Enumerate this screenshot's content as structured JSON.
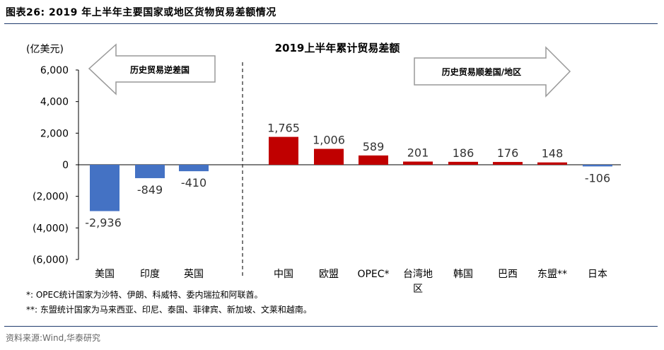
{
  "figure": {
    "title": "图表26:   2019 年上半年主要国家或地区货物贸易差额情况",
    "notes": [
      "*: OPEC统计国家为沙特、伊朗、科威特、委内瑞拉和阿联酋。",
      "**: 东盟统计国家为马来西亚、印尼、泰国、菲律宾、新加坡、文莱和越南。"
    ],
    "source": "资料来源:Wind,华泰研究"
  },
  "colors": {
    "deficit": "#4472c4",
    "surplus": "#c00000",
    "arrow_fill": "#ffffff",
    "arrow_stroke": "#999999"
  },
  "chart_data": {
    "type": "bar",
    "title": "2019上半年累计贸易差额",
    "ylabel": "(亿美元)",
    "ylim": [
      -6000,
      6000
    ],
    "yticks": [
      6000,
      4000,
      2000,
      0,
      -2000,
      -4000,
      -6000
    ],
    "ytick_labels": [
      "6,000",
      "4,000",
      "2,000",
      "0",
      "(2,000)",
      "(4,000)",
      "(6,000)"
    ],
    "categories": [
      "美国",
      "印度",
      "英国",
      "",
      "中国",
      "欧盟",
      "OPEC*",
      "台湾地区",
      "韩国",
      "巴西",
      "东盟**",
      "日本"
    ],
    "values": [
      -2936,
      -849,
      -410,
      null,
      1765,
      1006,
      589,
      201,
      186,
      176,
      148,
      -106
    ],
    "data_labels": [
      "-2,936",
      "-849",
      "-410",
      "",
      "1,765",
      "1,006",
      "589",
      "201",
      "186",
      "176",
      "148",
      "-106"
    ],
    "bar_colors": [
      "#4472c4",
      "#4472c4",
      "#4472c4",
      "",
      "#c00000",
      "#c00000",
      "#c00000",
      "#c00000",
      "#c00000",
      "#c00000",
      "#c00000",
      "#4472c4"
    ],
    "annotations": {
      "left_arrow": "历史贸易逆差国",
      "right_arrow": "历史贸易顺差国/地区"
    },
    "grid": false,
    "legend": "none"
  }
}
